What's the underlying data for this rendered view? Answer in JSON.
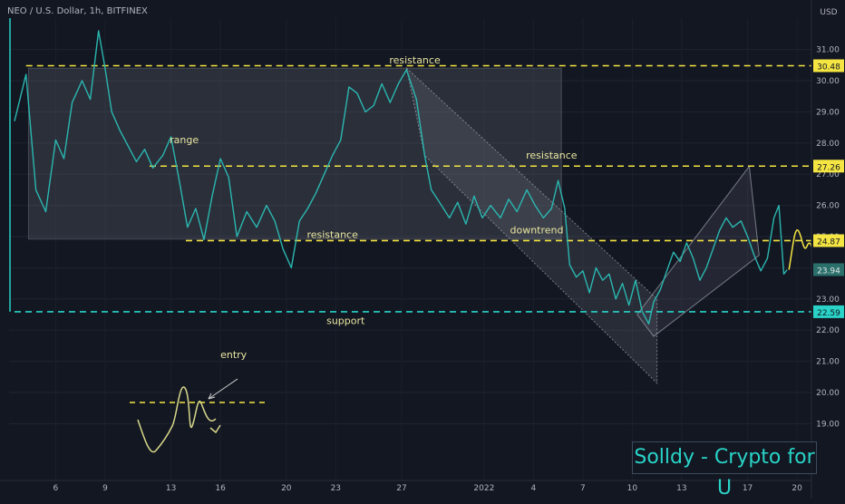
{
  "header": {
    "symbol": "NEO / U.S. Dollar, 1h, BITFINEX"
  },
  "axis": {
    "currency": "USD"
  },
  "watermark": {
    "text": "Solldy - Crypto for U"
  },
  "colors": {
    "background": "#131722",
    "price": "#2ab7b0",
    "yellow": "#f4e542",
    "cyan": "#29d3c7",
    "annot": "#e9e6a0",
    "channel": "#8b8f99"
  },
  "chart_data": {
    "type": "line",
    "ylim": [
      18.5,
      32.3
    ],
    "y_ticks": [
      19,
      20,
      21,
      22,
      23,
      24,
      25,
      26,
      27,
      28,
      29,
      30,
      31
    ],
    "x_ticks": [
      {
        "label": "6",
        "day": 6
      },
      {
        "label": "9",
        "day": 9
      },
      {
        "label": "13",
        "day": 13
      },
      {
        "label": "16",
        "day": 16
      },
      {
        "label": "20",
        "day": 20
      },
      {
        "label": "23",
        "day": 23
      },
      {
        "label": "27",
        "day": 27
      },
      {
        "label": "2022",
        "day": 32
      },
      {
        "label": "4",
        "day": 35
      },
      {
        "label": "7",
        "day": 38
      },
      {
        "label": "10",
        "day": 41
      },
      {
        "label": "13",
        "day": 44
      },
      {
        "label": "17",
        "day": 48
      },
      {
        "label": "20",
        "day": 51
      }
    ],
    "price_series": [
      [
        3.5,
        28.7
      ],
      [
        4.2,
        30.2
      ],
      [
        4.8,
        26.5
      ],
      [
        5.4,
        25.8
      ],
      [
        6.0,
        28.1
      ],
      [
        6.5,
        27.5
      ],
      [
        7.0,
        29.3
      ],
      [
        7.6,
        30.0
      ],
      [
        8.1,
        29.4
      ],
      [
        8.6,
        31.6
      ],
      [
        9.0,
        30.4
      ],
      [
        9.4,
        29.0
      ],
      [
        9.9,
        28.4
      ],
      [
        10.4,
        27.9
      ],
      [
        10.9,
        27.4
      ],
      [
        11.4,
        27.8
      ],
      [
        11.9,
        27.2
      ],
      [
        12.5,
        27.6
      ],
      [
        13.0,
        28.2
      ],
      [
        13.5,
        26.8
      ],
      [
        14.0,
        25.3
      ],
      [
        14.5,
        25.9
      ],
      [
        15.0,
        24.9
      ],
      [
        15.5,
        26.3
      ],
      [
        16.0,
        27.5
      ],
      [
        16.5,
        26.9
      ],
      [
        17.0,
        25.0
      ],
      [
        17.6,
        25.8
      ],
      [
        18.2,
        25.3
      ],
      [
        18.8,
        26.0
      ],
      [
        19.3,
        25.5
      ],
      [
        19.8,
        24.6
      ],
      [
        20.3,
        24.0
      ],
      [
        20.8,
        25.5
      ],
      [
        21.3,
        25.9
      ],
      [
        21.8,
        26.4
      ],
      [
        22.3,
        27.0
      ],
      [
        22.8,
        27.6
      ],
      [
        23.3,
        28.1
      ],
      [
        23.8,
        29.8
      ],
      [
        24.3,
        29.6
      ],
      [
        24.8,
        29.0
      ],
      [
        25.3,
        29.2
      ],
      [
        25.8,
        29.9
      ],
      [
        26.3,
        29.3
      ],
      [
        26.8,
        29.9
      ],
      [
        27.3,
        30.35
      ],
      [
        27.9,
        29.4
      ],
      [
        28.4,
        27.6
      ],
      [
        28.8,
        26.5
      ],
      [
        29.3,
        26.1
      ],
      [
        29.9,
        25.6
      ],
      [
        30.4,
        26.1
      ],
      [
        30.9,
        25.4
      ],
      [
        31.4,
        26.3
      ],
      [
        31.9,
        25.6
      ],
      [
        32.4,
        26.0
      ],
      [
        33.0,
        25.6
      ],
      [
        33.5,
        26.2
      ],
      [
        34.0,
        25.8
      ],
      [
        34.6,
        26.5
      ],
      [
        35.1,
        26.0
      ],
      [
        35.6,
        25.6
      ],
      [
        36.1,
        25.9
      ],
      [
        36.5,
        26.8
      ],
      [
        36.9,
        25.9
      ],
      [
        37.2,
        24.1
      ],
      [
        37.6,
        23.7
      ],
      [
        38.0,
        23.9
      ],
      [
        38.4,
        23.2
      ],
      [
        38.8,
        24.0
      ],
      [
        39.2,
        23.6
      ],
      [
        39.6,
        23.8
      ],
      [
        40.0,
        23.0
      ],
      [
        40.4,
        23.5
      ],
      [
        40.8,
        22.8
      ],
      [
        41.2,
        23.6
      ],
      [
        41.6,
        22.6
      ],
      [
        42.0,
        22.2
      ],
      [
        42.3,
        22.9
      ],
      [
        42.7,
        23.3
      ],
      [
        43.1,
        23.9
      ],
      [
        43.5,
        24.5
      ],
      [
        43.9,
        24.2
      ],
      [
        44.3,
        24.8
      ],
      [
        44.7,
        24.3
      ],
      [
        45.1,
        23.6
      ],
      [
        45.5,
        24.0
      ],
      [
        45.9,
        24.6
      ],
      [
        46.3,
        25.2
      ],
      [
        46.7,
        25.6
      ],
      [
        47.1,
        25.3
      ],
      [
        47.6,
        25.5
      ],
      [
        48.0,
        25.0
      ],
      [
        48.4,
        24.4
      ],
      [
        48.8,
        23.9
      ],
      [
        49.2,
        24.3
      ],
      [
        49.6,
        25.6
      ],
      [
        49.9,
        26.0
      ],
      [
        50.2,
        23.8
      ],
      [
        50.4,
        23.94
      ]
    ],
    "horizontal_levels": [
      {
        "price": 30.48,
        "label": "30.48",
        "color": "#f4e542",
        "from_day": 4.2
      },
      {
        "price": 27.26,
        "label": "27.26",
        "color": "#f4e542",
        "from_day": 11.7
      },
      {
        "price": 24.87,
        "label": "24.87",
        "color": "#f4e542",
        "from_day": 13.9
      },
      {
        "price": 22.59,
        "label": "22.59",
        "color": "#29d3c7",
        "from_day": 3.5
      }
    ],
    "current_price": {
      "label": "23.94",
      "price": 23.94
    },
    "annotations": [
      {
        "text": "range",
        "day": 13.8,
        "price": 28.0
      },
      {
        "text": "resistance",
        "day": 27.8,
        "price": 30.55
      },
      {
        "text": "resistance",
        "day": 36.1,
        "price": 27.5
      },
      {
        "text": "resistance",
        "day": 22.8,
        "price": 24.95
      },
      {
        "text": "downtrend",
        "day": 35.2,
        "price": 25.1
      },
      {
        "text": "support",
        "day": 23.6,
        "price": 22.2
      },
      {
        "text": "entry",
        "day": 16.8,
        "price": 21.1
      }
    ]
  }
}
